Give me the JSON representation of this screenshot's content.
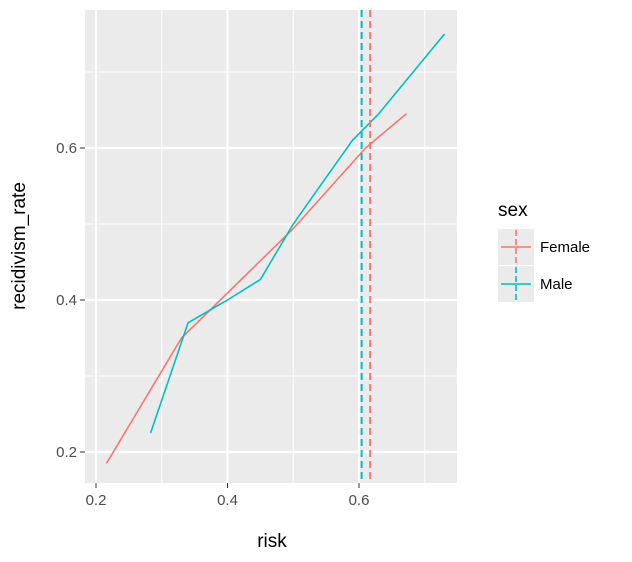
{
  "chart_data": {
    "type": "line",
    "xlabel": "risk",
    "ylabel": "recidivism_rate",
    "xlim": [
      0.2,
      0.75
    ],
    "ylim": [
      0.15,
      0.78
    ],
    "x_ticks": [
      0.2,
      0.4,
      0.6
    ],
    "x_tick_labels": [
      "0.2",
      "0.4",
      "0.6"
    ],
    "y_ticks": [
      0.2,
      0.4,
      0.6
    ],
    "y_tick_labels": [
      "0.2",
      "0.4",
      "0.6"
    ],
    "grid": true,
    "legend": {
      "title": "sex",
      "position": "right"
    },
    "series": [
      {
        "name": "Female",
        "color": "#F8766D",
        "points": [
          [
            0.216,
            0.185
          ],
          [
            0.33,
            0.35
          ],
          [
            0.5,
            0.494
          ],
          [
            0.61,
            0.6
          ],
          [
            0.672,
            0.645
          ]
        ],
        "vline": 0.617
      },
      {
        "name": "Male",
        "color": "#00BFC4",
        "points": [
          [
            0.283,
            0.225
          ],
          [
            0.34,
            0.37
          ],
          [
            0.4,
            0.4
          ],
          [
            0.45,
            0.427
          ],
          [
            0.5,
            0.5
          ],
          [
            0.545,
            0.555
          ],
          [
            0.59,
            0.61
          ],
          [
            0.63,
            0.645
          ],
          [
            0.73,
            0.75
          ]
        ],
        "vline": 0.604
      }
    ]
  }
}
